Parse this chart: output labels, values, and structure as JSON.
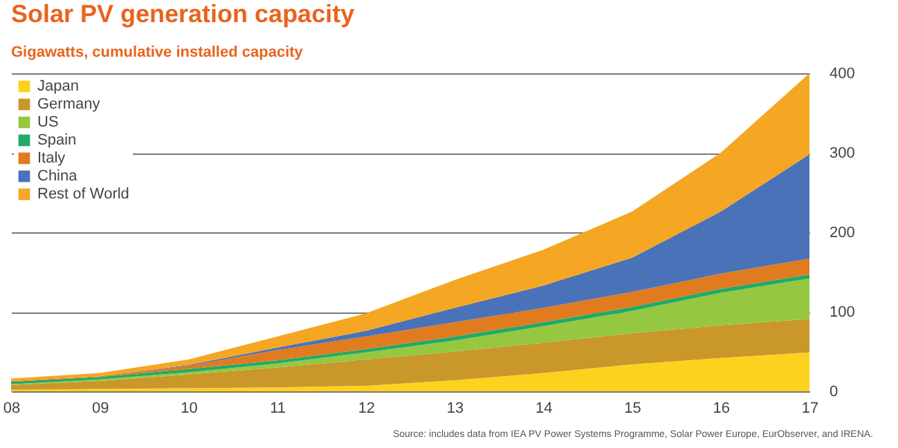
{
  "chart_data": {
    "type": "area",
    "stacked": true,
    "title": "Solar PV generation capacity",
    "subtitle": "Gigawatts, cumulative installed capacity",
    "categories": [
      "08",
      "09",
      "10",
      "11",
      "12",
      "13",
      "14",
      "15",
      "16",
      "17"
    ],
    "series": [
      {
        "name": "Japan",
        "color": "#fdd21f",
        "values": [
          2,
          3,
          4,
          5,
          7,
          14,
          23,
          34,
          42,
          49
        ]
      },
      {
        "name": "Germany",
        "color": "#c9972a",
        "values": [
          6,
          10,
          17,
          25,
          33,
          36,
          38,
          39,
          41,
          42
        ]
      },
      {
        "name": "US",
        "color": "#95c840",
        "values": [
          1,
          2,
          3,
          5,
          9,
          14,
          21,
          28,
          41,
          51
        ]
      },
      {
        "name": "Spain",
        "color": "#22aa66",
        "values": [
          3,
          3,
          4,
          4,
          4,
          5,
          5,
          5,
          5,
          5
        ]
      },
      {
        "name": "Italy",
        "color": "#e07b20",
        "values": [
          1,
          1,
          4,
          13,
          16,
          18,
          18,
          19,
          19,
          20
        ]
      },
      {
        "name": "China",
        "color": "#4a72b8",
        "values": [
          0,
          0,
          1,
          3,
          7,
          18,
          28,
          43,
          78,
          131
        ]
      },
      {
        "name": "Rest of World",
        "color": "#f5a623",
        "values": [
          3,
          4,
          7,
          14,
          22,
          35,
          45,
          58,
          74,
          102
        ]
      }
    ],
    "ylim": [
      0,
      400
    ],
    "yticks": [
      0,
      100,
      200,
      300,
      400
    ],
    "grid": "y",
    "legend": "top left",
    "annotations": [
      "Source: includes data from IEA PV Power Systems Programme, Solar Power Europe, EurObserver, and IRENA."
    ]
  }
}
